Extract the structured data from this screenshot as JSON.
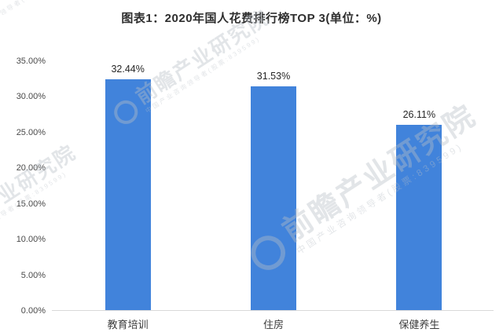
{
  "chart_data": {
    "type": "bar",
    "title": "图表1：2020年国人花费排行榜TOP 3(单位：%)",
    "categories": [
      "教育培训",
      "住房",
      "保健养生"
    ],
    "values": [
      32.44,
      31.53,
      26.11
    ],
    "value_labels": [
      "32.44%",
      "31.53%",
      "26.11%"
    ],
    "xlabel": "",
    "ylabel": "",
    "ylim": [
      0,
      35
    ],
    "ytick_step": 5,
    "ytick_labels": [
      "0.00%",
      "5.00%",
      "10.00%",
      "15.00%",
      "20.00%",
      "25.00%",
      "30.00%",
      "35.00%"
    ],
    "grid": false,
    "legend": "none",
    "bar_color": "#4183db",
    "axis_line_color": "#d9d9d9",
    "title_color": "#2e2e2e",
    "tick_text_color": "#4a4a4a",
    "value_text_color": "#262626"
  },
  "watermark": {
    "main_text": "前瞻产业研究院",
    "sub_text": "中国产业咨询领导者(股票:839599)"
  }
}
